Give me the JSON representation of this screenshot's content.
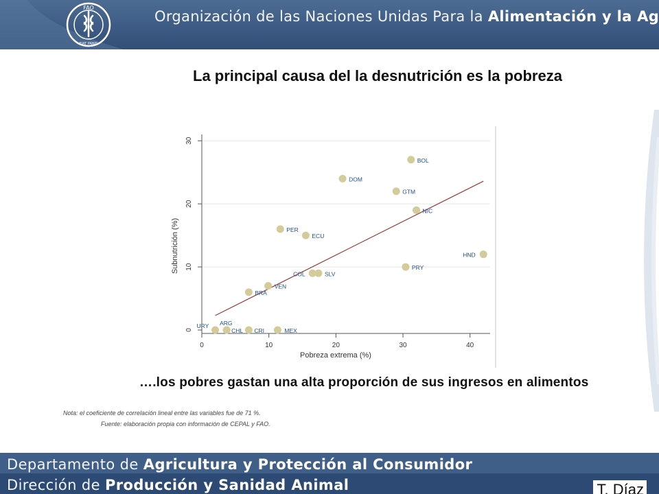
{
  "header": {
    "org_prefix": "Organización de las Naciones Unidas Para la ",
    "org_bold": "Alimentación y la Agricultura",
    "logo_letters": "FAO",
    "logo_motto": "FIAT PANIS"
  },
  "slide": {
    "title": "La principal causa del la desnutrición es la pobreza",
    "subtitle": "….los pobres gastan una alta proporción de sus ingresos en alimentos",
    "nota": "Nota: el coeficiente de correlación lineal entre las variables fue de 71 %.",
    "fuente": "Fuente: elaboración propia con información de CEPAL y FAO."
  },
  "footer": {
    "line1_prefix": "Departamento de ",
    "line1_bold": "Agricultura y Protección al Consumidor",
    "line2_prefix": "Dirección de ",
    "line2_bold": "Producción y Sanidad Animal",
    "author": "T. Díaz"
  },
  "colors": {
    "marker": "#d4cb9a",
    "trend": "#a03535",
    "label": "#1f4f8f",
    "grid": "#e6e6e6",
    "header": "#3d5b84"
  },
  "chart_data": {
    "type": "scatter",
    "xlabel": "Pobreza extrema (%)",
    "ylabel": "Subnutrición (%)",
    "xlim": [
      0,
      43
    ],
    "ylim": [
      0,
      31
    ],
    "xticks": [
      0,
      10,
      20,
      30,
      40
    ],
    "yticks": [
      0,
      10,
      20,
      30
    ],
    "grid": true,
    "points": [
      {
        "label": "URY",
        "x": 2.0,
        "y": 0
      },
      {
        "label": "ARG",
        "x": 3.7,
        "y": 0
      },
      {
        "label": "CHL",
        "x": 3.7,
        "y": 0
      },
      {
        "label": "CRI",
        "x": 7.0,
        "y": 0
      },
      {
        "label": "MEX",
        "x": 11.3,
        "y": 0
      },
      {
        "label": "BRA",
        "x": 7.0,
        "y": 6
      },
      {
        "label": "VEN",
        "x": 9.9,
        "y": 7
      },
      {
        "label": "PER",
        "x": 11.7,
        "y": 16
      },
      {
        "label": "ECU",
        "x": 15.5,
        "y": 15
      },
      {
        "label": "COL",
        "x": 16.5,
        "y": 9
      },
      {
        "label": "SLV",
        "x": 17.4,
        "y": 9
      },
      {
        "label": "DOM",
        "x": 21.0,
        "y": 24
      },
      {
        "label": "GTM",
        "x": 29.0,
        "y": 22
      },
      {
        "label": "BOL",
        "x": 31.2,
        "y": 27
      },
      {
        "label": "NIC",
        "x": 32.0,
        "y": 19
      },
      {
        "label": "PRY",
        "x": 30.4,
        "y": 10
      },
      {
        "label": "HND",
        "x": 42.0,
        "y": 12
      }
    ],
    "trend_line": {
      "x": [
        2.0,
        42.0
      ],
      "y": [
        2.3,
        23.6
      ]
    }
  }
}
